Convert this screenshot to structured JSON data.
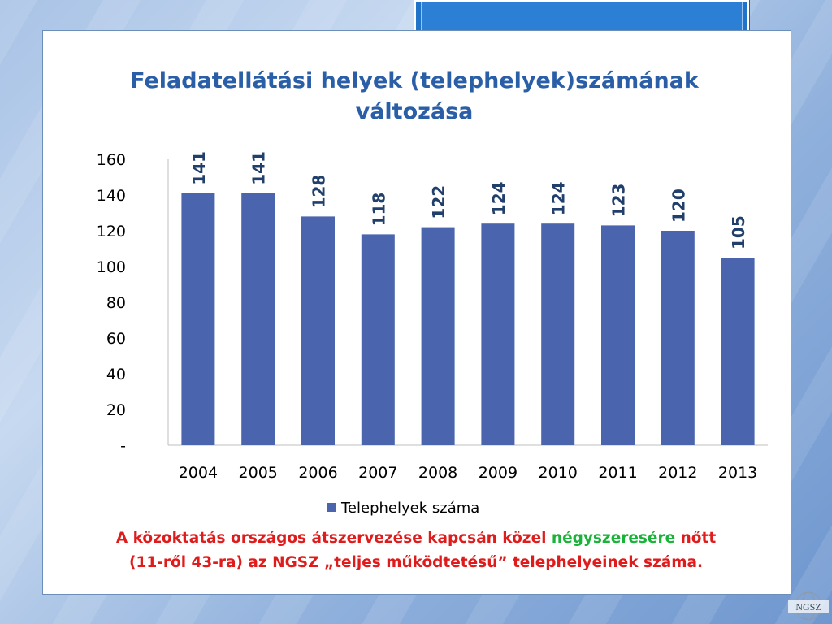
{
  "slide": {
    "title_line1": "Feladatellátási helyek (telephelyek)számának",
    "title_line2": "változása",
    "footer_part1": "A közoktatás országos átszervezése kapcsán közel ",
    "footer_highlight": "négyszeresére",
    "footer_part2": " nőtt",
    "footer_line2": "(11-ről 43-ra) az NGSZ „teljes működtetésű” telephelyeinek száma.",
    "logo_text": "NGSZ"
  },
  "colors": {
    "bar": "#4a64ad",
    "title": "#2a5fa8",
    "data_label": "#203f6b",
    "footer_red": "#e01b1b",
    "footer_green": "#19b33a"
  },
  "chart_data": {
    "type": "bar",
    "title": "Feladatellátási helyek (telephelyek)számának változása",
    "categories": [
      "2004",
      "2005",
      "2006",
      "2007",
      "2008",
      "2009",
      "2010",
      "2011",
      "2012",
      "2013"
    ],
    "series": [
      {
        "name": "Telephelyek száma",
        "values": [
          141,
          141,
          128,
          118,
          122,
          124,
          124,
          123,
          120,
          105
        ]
      }
    ],
    "ylim": [
      0,
      160
    ],
    "yticks": [
      0,
      20,
      40,
      60,
      80,
      100,
      120,
      140,
      160
    ],
    "ytick_labels": [
      "-",
      "20",
      "40",
      "60",
      "80",
      "100",
      "120",
      "140",
      "160"
    ],
    "xlabel": "",
    "ylabel": "",
    "grid": false,
    "legend_position": "bottom",
    "data_labels": true
  }
}
